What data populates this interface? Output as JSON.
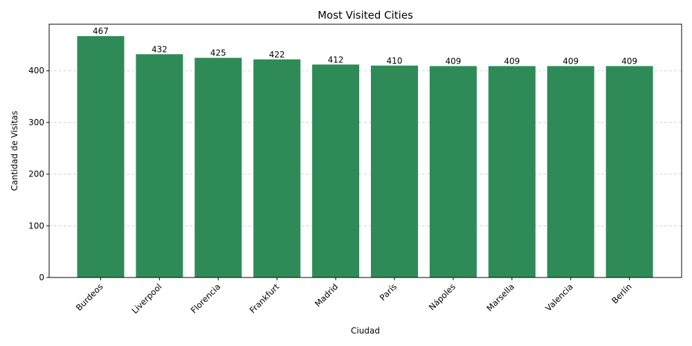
{
  "chart_data": {
    "type": "bar",
    "title": "Most Visited Cities",
    "xlabel": "Ciudad",
    "ylabel": "Cantidad de Visitas",
    "categories": [
      "Burdeos",
      "Liverpool",
      "Florencia",
      "Frankfurt",
      "Madrid",
      "París",
      "Nápoles",
      "Marsella",
      "Valencia",
      "Berlín"
    ],
    "values": [
      467,
      432,
      425,
      422,
      412,
      410,
      409,
      409,
      409,
      409
    ],
    "value_labels": [
      "467",
      "432",
      "425",
      "422",
      "412",
      "410",
      "409",
      "409",
      "409",
      "409"
    ],
    "ylim": [
      0,
      490
    ],
    "yticks": [
      0,
      100,
      200,
      300,
      400
    ],
    "ytick_labels": [
      "0",
      "100",
      "200",
      "300",
      "400"
    ],
    "grid": true,
    "bar_color": "#2e8b57",
    "x_tick_rotation_deg": 45
  }
}
